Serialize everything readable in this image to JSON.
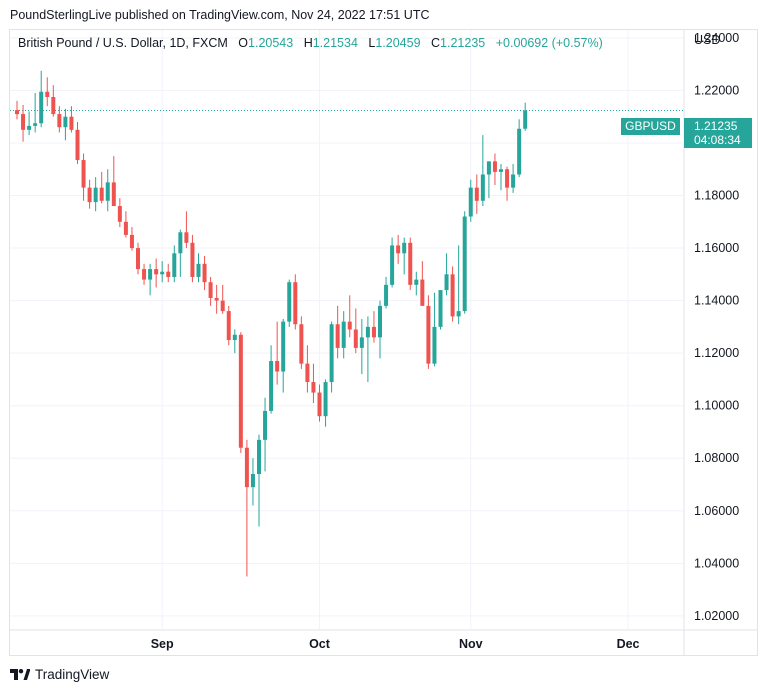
{
  "header": {
    "caption": "PoundSterlingLive published on TradingView.com, Nov 24, 2022 17:51 UTC"
  },
  "legend": {
    "symbol": "British Pound / U.S. Dollar, 1D, FXCM",
    "o_label": "O",
    "o_value": "1.20543",
    "h_label": "H",
    "h_value": "1.21534",
    "l_label": "L",
    "l_value": "1.20459",
    "c_label": "C",
    "c_value": "1.21235",
    "change": "+0.00692 (+0.57%)"
  },
  "axis": {
    "currency": "USD"
  },
  "price_tag": {
    "symbol": "GBPUSD",
    "price": "1.21235",
    "countdown": "04:08:34"
  },
  "brand": {
    "name": "TradingView"
  },
  "colors": {
    "up": "#26a69a",
    "down": "#ef5350",
    "grid": "#f0f3fa",
    "text": "#131722"
  },
  "chart_data": {
    "type": "candlestick",
    "ylim": [
      1.015,
      1.243
    ],
    "y_ticks": [
      "1.24000",
      "1.22000",
      "1.20000",
      "1.18000",
      "1.16000",
      "1.14000",
      "1.12000",
      "1.10000",
      "1.08000",
      "1.06000",
      "1.04000",
      "1.02000"
    ],
    "x_ticks": [
      {
        "label": "Sep",
        "index": 24
      },
      {
        "label": "Oct",
        "index": 50
      },
      {
        "label": "Nov",
        "index": 75
      },
      {
        "label": "Dec",
        "index": 101
      }
    ],
    "last_price": 1.21235,
    "grid": true,
    "candles": [
      {
        "o": 1.2125,
        "h": 1.216,
        "l": 1.209,
        "c": 1.211
      },
      {
        "o": 1.211,
        "h": 1.2145,
        "l": 1.2005,
        "c": 1.205
      },
      {
        "o": 1.205,
        "h": 1.212,
        "l": 1.203,
        "c": 1.2065
      },
      {
        "o": 1.2065,
        "h": 1.219,
        "l": 1.204,
        "c": 1.2075
      },
      {
        "o": 1.2075,
        "h": 1.2275,
        "l": 1.206,
        "c": 1.2195
      },
      {
        "o": 1.2195,
        "h": 1.225,
        "l": 1.214,
        "c": 1.2175
      },
      {
        "o": 1.2175,
        "h": 1.222,
        "l": 1.21,
        "c": 1.211
      },
      {
        "o": 1.211,
        "h": 1.214,
        "l": 1.204,
        "c": 1.206
      },
      {
        "o": 1.206,
        "h": 1.213,
        "l": 1.201,
        "c": 1.21
      },
      {
        "o": 1.21,
        "h": 1.214,
        "l": 1.204,
        "c": 1.205
      },
      {
        "o": 1.205,
        "h": 1.208,
        "l": 1.192,
        "c": 1.1935
      },
      {
        "o": 1.1935,
        "h": 1.196,
        "l": 1.178,
        "c": 1.183
      },
      {
        "o": 1.183,
        "h": 1.186,
        "l": 1.175,
        "c": 1.1775
      },
      {
        "o": 1.1775,
        "h": 1.187,
        "l": 1.174,
        "c": 1.183
      },
      {
        "o": 1.183,
        "h": 1.189,
        "l": 1.177,
        "c": 1.178
      },
      {
        "o": 1.178,
        "h": 1.19,
        "l": 1.174,
        "c": 1.185
      },
      {
        "o": 1.185,
        "h": 1.195,
        "l": 1.176,
        "c": 1.176
      },
      {
        "o": 1.176,
        "h": 1.179,
        "l": 1.168,
        "c": 1.17
      },
      {
        "o": 1.17,
        "h": 1.174,
        "l": 1.164,
        "c": 1.165
      },
      {
        "o": 1.165,
        "h": 1.168,
        "l": 1.159,
        "c": 1.16
      },
      {
        "o": 1.16,
        "h": 1.162,
        "l": 1.15,
        "c": 1.152
      },
      {
        "o": 1.152,
        "h": 1.154,
        "l": 1.146,
        "c": 1.148
      },
      {
        "o": 1.148,
        "h": 1.154,
        "l": 1.142,
        "c": 1.152
      },
      {
        "o": 1.152,
        "h": 1.156,
        "l": 1.145,
        "c": 1.15
      },
      {
        "o": 1.15,
        "h": 1.155,
        "l": 1.147,
        "c": 1.151
      },
      {
        "o": 1.151,
        "h": 1.154,
        "l": 1.147,
        "c": 1.149
      },
      {
        "o": 1.149,
        "h": 1.161,
        "l": 1.147,
        "c": 1.158
      },
      {
        "o": 1.158,
        "h": 1.167,
        "l": 1.149,
        "c": 1.166
      },
      {
        "o": 1.166,
        "h": 1.174,
        "l": 1.16,
        "c": 1.162
      },
      {
        "o": 1.162,
        "h": 1.165,
        "l": 1.147,
        "c": 1.149
      },
      {
        "o": 1.149,
        "h": 1.158,
        "l": 1.147,
        "c": 1.154
      },
      {
        "o": 1.154,
        "h": 1.157,
        "l": 1.144,
        "c": 1.147
      },
      {
        "o": 1.147,
        "h": 1.149,
        "l": 1.138,
        "c": 1.141
      },
      {
        "o": 1.141,
        "h": 1.146,
        "l": 1.135,
        "c": 1.14
      },
      {
        "o": 1.14,
        "h": 1.146,
        "l": 1.135,
        "c": 1.136
      },
      {
        "o": 1.136,
        "h": 1.138,
        "l": 1.123,
        "c": 1.125
      },
      {
        "o": 1.125,
        "h": 1.129,
        "l": 1.12,
        "c": 1.127
      },
      {
        "o": 1.127,
        "h": 1.128,
        "l": 1.082,
        "c": 1.084
      },
      {
        "o": 1.084,
        "h": 1.087,
        "l": 1.035,
        "c": 1.069
      },
      {
        "o": 1.069,
        "h": 1.08,
        "l": 1.062,
        "c": 1.074
      },
      {
        "o": 1.074,
        "h": 1.089,
        "l": 1.054,
        "c": 1.087
      },
      {
        "o": 1.087,
        "h": 1.103,
        "l": 1.075,
        "c": 1.098
      },
      {
        "o": 1.098,
        "h": 1.123,
        "l": 1.097,
        "c": 1.117
      },
      {
        "o": 1.117,
        "h": 1.132,
        "l": 1.108,
        "c": 1.113
      },
      {
        "o": 1.113,
        "h": 1.133,
        "l": 1.105,
        "c": 1.132
      },
      {
        "o": 1.132,
        "h": 1.148,
        "l": 1.13,
        "c": 1.147
      },
      {
        "o": 1.147,
        "h": 1.15,
        "l": 1.129,
        "c": 1.131
      },
      {
        "o": 1.131,
        "h": 1.134,
        "l": 1.114,
        "c": 1.116
      },
      {
        "o": 1.116,
        "h": 1.123,
        "l": 1.105,
        "c": 1.109
      },
      {
        "o": 1.109,
        "h": 1.116,
        "l": 1.101,
        "c": 1.105
      },
      {
        "o": 1.105,
        "h": 1.108,
        "l": 1.094,
        "c": 1.096
      },
      {
        "o": 1.096,
        "h": 1.11,
        "l": 1.092,
        "c": 1.109
      },
      {
        "o": 1.109,
        "h": 1.132,
        "l": 1.105,
        "c": 1.131
      },
      {
        "o": 1.131,
        "h": 1.138,
        "l": 1.118,
        "c": 1.122
      },
      {
        "o": 1.122,
        "h": 1.136,
        "l": 1.118,
        "c": 1.132
      },
      {
        "o": 1.132,
        "h": 1.142,
        "l": 1.126,
        "c": 1.129
      },
      {
        "o": 1.129,
        "h": 1.137,
        "l": 1.12,
        "c": 1.122
      },
      {
        "o": 1.122,
        "h": 1.133,
        "l": 1.112,
        "c": 1.126
      },
      {
        "o": 1.126,
        "h": 1.134,
        "l": 1.109,
        "c": 1.13
      },
      {
        "o": 1.13,
        "h": 1.136,
        "l": 1.124,
        "c": 1.126
      },
      {
        "o": 1.126,
        "h": 1.14,
        "l": 1.118,
        "c": 1.138
      },
      {
        "o": 1.138,
        "h": 1.149,
        "l": 1.137,
        "c": 1.146
      },
      {
        "o": 1.146,
        "h": 1.164,
        "l": 1.145,
        "c": 1.161
      },
      {
        "o": 1.161,
        "h": 1.165,
        "l": 1.154,
        "c": 1.158
      },
      {
        "o": 1.158,
        "h": 1.164,
        "l": 1.15,
        "c": 1.162
      },
      {
        "o": 1.162,
        "h": 1.164,
        "l": 1.144,
        "c": 1.146
      },
      {
        "o": 1.146,
        "h": 1.151,
        "l": 1.142,
        "c": 1.148
      },
      {
        "o": 1.148,
        "h": 1.155,
        "l": 1.138,
        "c": 1.138
      },
      {
        "o": 1.138,
        "h": 1.142,
        "l": 1.114,
        "c": 1.116
      },
      {
        "o": 1.116,
        "h": 1.143,
        "l": 1.115,
        "c": 1.13
      },
      {
        "o": 1.13,
        "h": 1.144,
        "l": 1.129,
        "c": 1.144
      },
      {
        "o": 1.144,
        "h": 1.158,
        "l": 1.142,
        "c": 1.15
      },
      {
        "o": 1.15,
        "h": 1.153,
        "l": 1.132,
        "c": 1.134
      },
      {
        "o": 1.134,
        "h": 1.161,
        "l": 1.131,
        "c": 1.136
      },
      {
        "o": 1.136,
        "h": 1.174,
        "l": 1.135,
        "c": 1.172
      },
      {
        "o": 1.172,
        "h": 1.186,
        "l": 1.17,
        "c": 1.183
      },
      {
        "o": 1.183,
        "h": 1.188,
        "l": 1.173,
        "c": 1.178
      },
      {
        "o": 1.178,
        "h": 1.203,
        "l": 1.176,
        "c": 1.188
      },
      {
        "o": 1.188,
        "h": 1.193,
        "l": 1.179,
        "c": 1.193
      },
      {
        "o": 1.193,
        "h": 1.196,
        "l": 1.184,
        "c": 1.189
      },
      {
        "o": 1.189,
        "h": 1.192,
        "l": 1.182,
        "c": 1.19
      },
      {
        "o": 1.19,
        "h": 1.191,
        "l": 1.178,
        "c": 1.183
      },
      {
        "o": 1.183,
        "h": 1.192,
        "l": 1.181,
        "c": 1.188
      },
      {
        "o": 1.188,
        "h": 1.209,
        "l": 1.187,
        "c": 1.2054
      },
      {
        "o": 1.20543,
        "h": 1.21534,
        "l": 1.20459,
        "c": 1.21235
      }
    ]
  }
}
